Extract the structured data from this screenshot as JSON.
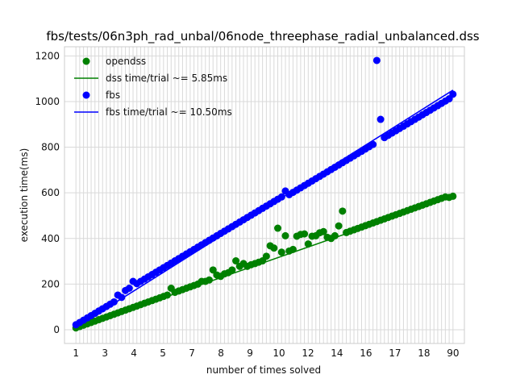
{
  "chart_data": {
    "type": "scatter",
    "title": "fbs/tests/06n3ph_rad_unbal/06node_threephase_radial_unbalanced.dss",
    "xlabel": "number of times solved",
    "ylabel": "execution time(ms)",
    "xlim": [
      -2,
      103
    ],
    "ylim": [
      -60,
      1240
    ],
    "yticks": [
      0,
      200,
      400,
      600,
      800,
      1000,
      1200
    ],
    "x_tick_labels_visible": [
      "1",
      "3",
      "4",
      "5",
      "7",
      "8",
      "9",
      "10",
      "12",
      "14",
      "16",
      "17",
      "18",
      "90"
    ],
    "grid": true,
    "legend_position": "upper-left",
    "colors": {
      "opendss": "#008000",
      "fbs": "#0000ff"
    },
    "series": [
      {
        "name": "opendss",
        "kind": "scatter",
        "color": "#008000",
        "x": [
          1,
          2,
          3,
          4,
          5,
          6,
          7,
          8,
          9,
          10,
          11,
          12,
          13,
          14,
          15,
          16,
          17,
          18,
          19,
          20,
          21,
          22,
          23,
          24,
          25,
          26,
          27,
          28,
          29,
          30,
          31,
          32,
          33,
          34,
          35,
          36,
          37,
          38,
          39,
          40,
          41,
          42,
          43,
          44,
          45,
          46,
          47,
          48,
          49,
          50,
          51,
          52,
          53,
          54,
          55,
          56,
          57,
          58,
          59,
          60,
          61,
          62,
          63,
          64,
          65,
          66,
          67,
          68,
          69,
          70,
          71,
          72,
          73,
          74,
          75,
          76,
          77,
          78,
          79,
          80,
          81,
          82,
          83,
          84,
          85,
          86,
          87,
          88,
          89,
          90,
          91,
          92,
          93,
          94,
          95,
          96,
          97,
          98,
          99,
          100
        ],
        "y": [
          8,
          14,
          20,
          26,
          32,
          38,
          44,
          50,
          56,
          62,
          68,
          74,
          80,
          86,
          92,
          98,
          104,
          110,
          116,
          122,
          128,
          134,
          140,
          146,
          152,
          182,
          164,
          170,
          176,
          182,
          188,
          194,
          200,
          212,
          212,
          218,
          262,
          240,
          234,
          245,
          250,
          262,
          302,
          278,
          290,
          278,
          285,
          290,
          296,
          302,
          322,
          368,
          358,
          445,
          340,
          412,
          345,
          352,
          410,
          418,
          420,
          376,
          410,
          412,
          425,
          430,
          405,
          400,
          412,
          455,
          520,
          426,
          432,
          438,
          444,
          450,
          456,
          462,
          468,
          474,
          480,
          486,
          492,
          498,
          504,
          510,
          516,
          522,
          528,
          534,
          540,
          546,
          552,
          558,
          564,
          570,
          576,
          582,
          580,
          585
        ]
      },
      {
        "name": "dss time/trial ~= 5.85ms",
        "kind": "line",
        "color": "#008000",
        "x": [
          1,
          100
        ],
        "y": [
          5.85,
          585
        ]
      },
      {
        "name": "fbs",
        "kind": "scatter",
        "color": "#0000ff",
        "x": [
          1,
          2,
          3,
          4,
          5,
          6,
          7,
          8,
          9,
          10,
          11,
          12,
          13,
          14,
          15,
          16,
          17,
          18,
          19,
          20,
          21,
          22,
          23,
          24,
          25,
          26,
          27,
          28,
          29,
          30,
          31,
          32,
          33,
          34,
          35,
          36,
          37,
          38,
          39,
          40,
          41,
          42,
          43,
          44,
          45,
          46,
          47,
          48,
          49,
          50,
          51,
          52,
          53,
          54,
          55,
          56,
          57,
          58,
          59,
          60,
          61,
          62,
          63,
          64,
          65,
          66,
          67,
          68,
          69,
          70,
          71,
          72,
          73,
          74,
          75,
          76,
          77,
          78,
          79,
          80,
          81,
          82,
          83,
          84,
          85,
          86,
          87,
          88,
          89,
          90,
          91,
          92,
          93,
          94,
          95,
          96,
          97,
          98,
          99,
          100
        ],
        "y": [
          22,
          32,
          42,
          52,
          62,
          72,
          82,
          92,
          102,
          112,
          122,
          152,
          142,
          172,
          182,
          212,
          202,
          212,
          222,
          232,
          242,
          252,
          262,
          272,
          282,
          292,
          302,
          312,
          322,
          332,
          342,
          352,
          362,
          372,
          382,
          392,
          402,
          412,
          422,
          432,
          442,
          452,
          462,
          472,
          482,
          492,
          502,
          512,
          522,
          532,
          542,
          552,
          562,
          572,
          582,
          608,
          592,
          602,
          612,
          622,
          632,
          642,
          652,
          662,
          672,
          682,
          692,
          702,
          712,
          722,
          732,
          742,
          752,
          762,
          772,
          782,
          792,
          802,
          812,
          1180,
          922,
          842,
          852,
          862,
          872,
          882,
          892,
          902,
          912,
          922,
          932,
          942,
          952,
          962,
          972,
          982,
          992,
          1002,
          1012,
          1032
        ]
      },
      {
        "name": "fbs time/trial ~= 10.50ms",
        "kind": "line",
        "color": "#0000ff",
        "x": [
          1,
          100
        ],
        "y": [
          10.5,
          1050
        ]
      }
    ]
  }
}
